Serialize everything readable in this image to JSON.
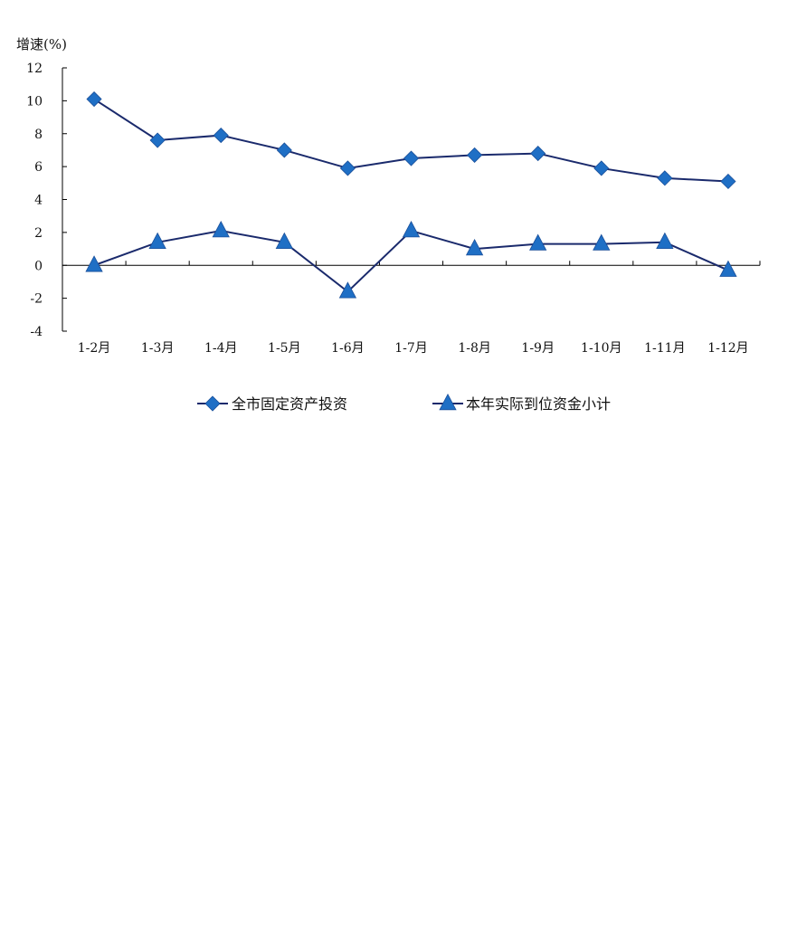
{
  "chart_data": {
    "type": "line",
    "ylabel": "增速(%)",
    "categories": [
      "1-2月",
      "1-3月",
      "1-4月",
      "1-5月",
      "1-6月",
      "1-7月",
      "1-8月",
      "1-9月",
      "1-10月",
      "1-11月",
      "1-12月"
    ],
    "ylim": [
      -4,
      12
    ],
    "yticks": [
      -4,
      -2,
      0,
      2,
      4,
      6,
      8,
      10,
      12
    ],
    "grid": false,
    "legend_position": "bottom",
    "series": [
      {
        "name": "全市固定资产投资",
        "marker": "diamond",
        "color": "#1f6fc5",
        "line_color": "#1a2a6c",
        "values": [
          10.1,
          7.6,
          7.9,
          7.0,
          5.9,
          6.5,
          6.7,
          6.8,
          5.9,
          5.3,
          5.1
        ]
      },
      {
        "name": "本年实际到位资金小计",
        "marker": "triangle",
        "color": "#1f6fc5",
        "line_color": "#1a2a6c",
        "values": [
          0.0,
          1.4,
          2.1,
          1.4,
          -1.6,
          2.1,
          1.0,
          1.3,
          1.3,
          1.4,
          -0.3
        ]
      }
    ]
  }
}
